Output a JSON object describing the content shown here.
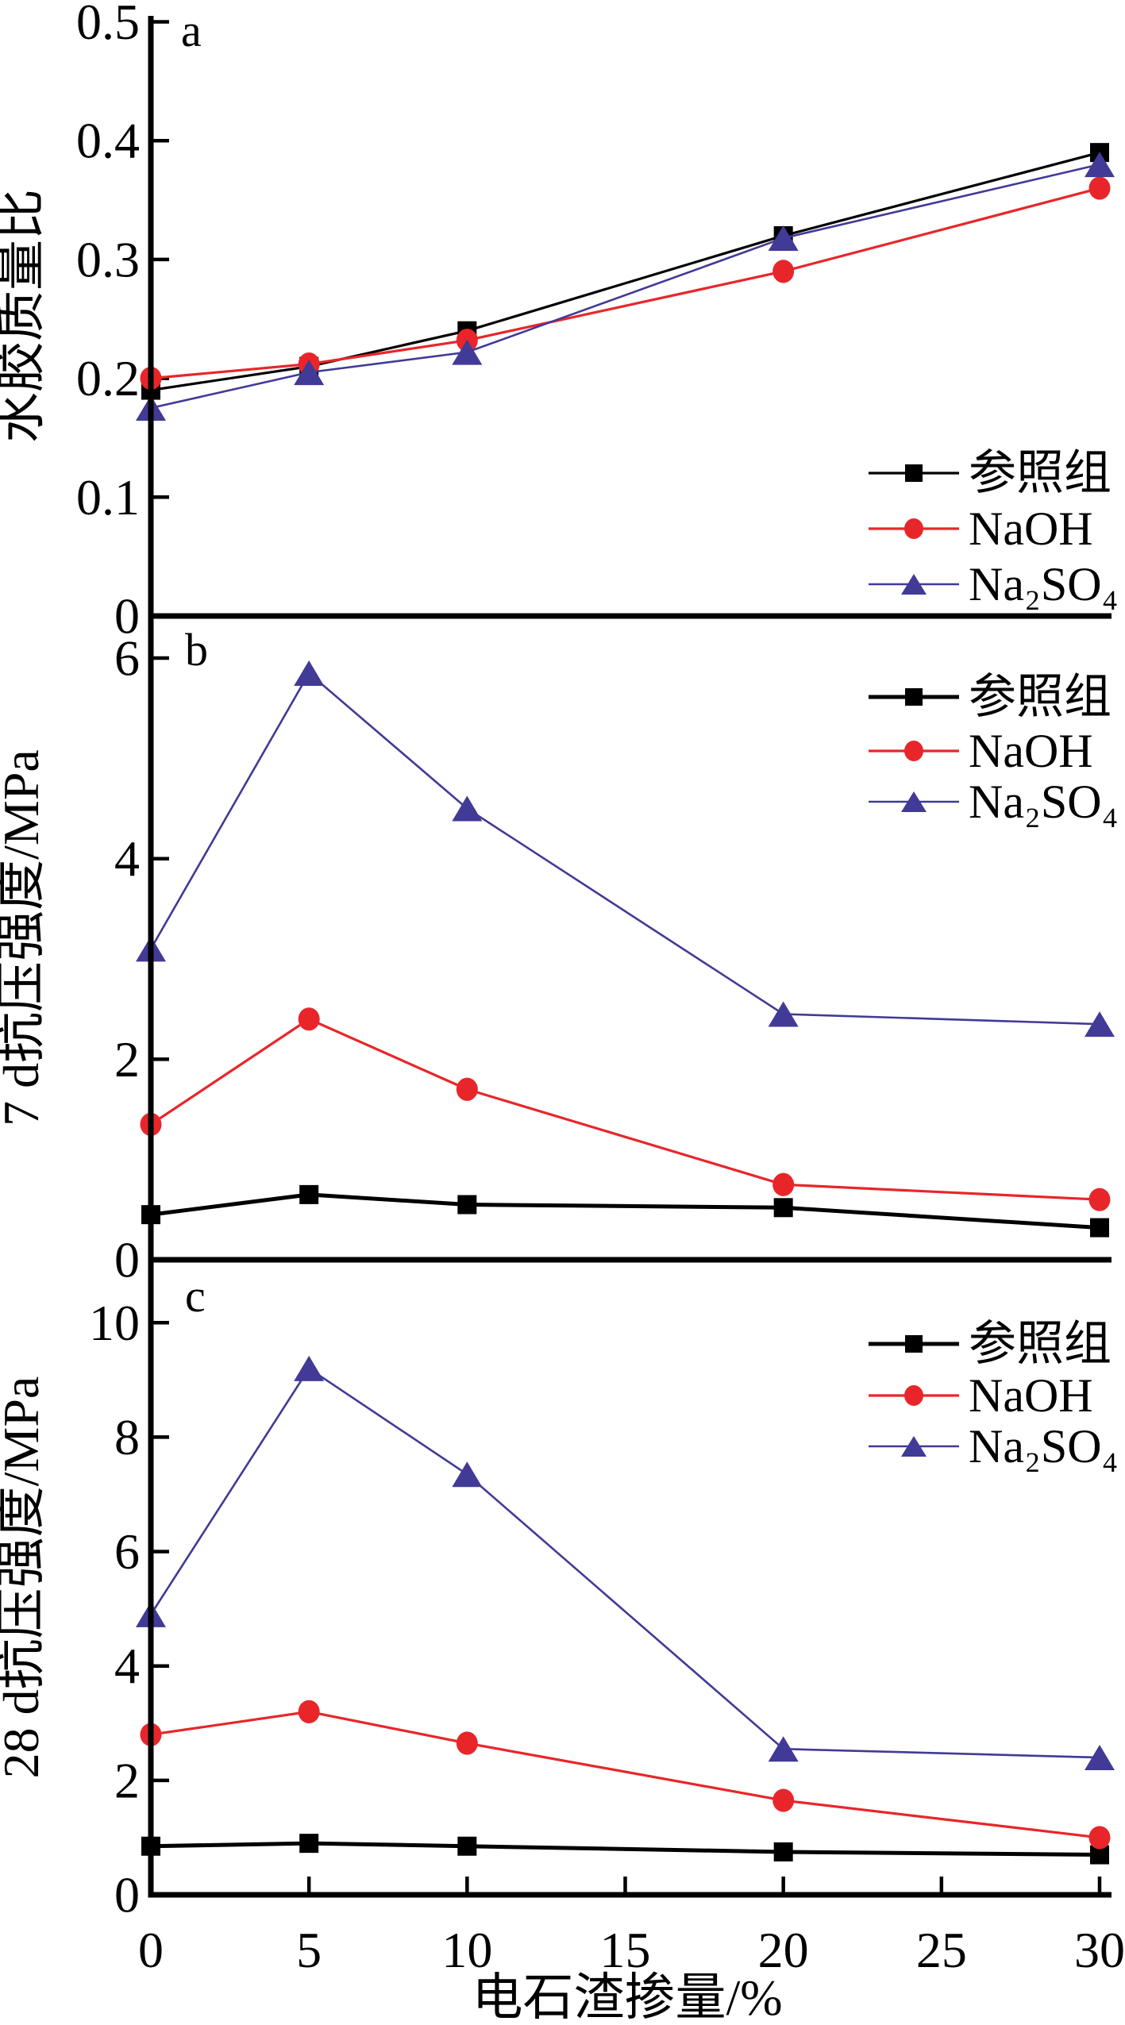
{
  "figure": {
    "xlabel": "电石渣掺量/%",
    "x_ticks": [
      0,
      5,
      10,
      15,
      20,
      25,
      30
    ],
    "x_range": [
      0,
      30
    ],
    "background": "#ffffff",
    "axis_color": "#000000",
    "legend_labels": [
      "参照组",
      "NaOH",
      "Na₂SO₄"
    ],
    "series_colors": {
      "reference": "#000000",
      "naoh": "#e8262a",
      "na2so4": "#413a96"
    }
  },
  "chart_data": [
    {
      "type": "line",
      "panel_label": "a",
      "ylabel": "水胶质量比",
      "x": [
        0,
        5,
        10,
        20,
        30
      ],
      "ylim": [
        0,
        0.505
      ],
      "yticks": [
        0,
        0.1,
        0.2,
        0.3,
        0.4,
        0.5
      ],
      "grid": false,
      "legend_position": "lower-right",
      "series": [
        {
          "id": "reference",
          "name": "参照组",
          "marker": "square",
          "color": "#000000",
          "line_width": 3.2,
          "values": [
            0.19,
            0.21,
            0.24,
            0.32,
            0.39
          ]
        },
        {
          "id": "naoh",
          "name": "NaOH",
          "marker": "circle",
          "color": "#e8262a",
          "line_width": 3.2,
          "values": [
            0.2,
            0.212,
            0.232,
            0.29,
            0.36
          ]
        },
        {
          "id": "na2so4",
          "name": "Na₂SO₄",
          "marker": "triangle",
          "color": "#413a96",
          "line_width": 2.6,
          "values": [
            0.175,
            0.205,
            0.222,
            0.318,
            0.38
          ]
        }
      ]
    },
    {
      "type": "line",
      "panel_label": "b",
      "ylabel": "7 d抗压强度/MPa",
      "x": [
        0,
        5,
        10,
        20,
        30
      ],
      "ylim": [
        0,
        6.42
      ],
      "yticks": [
        0,
        2,
        4,
        6
      ],
      "grid": false,
      "legend_position": "upper-right",
      "series": [
        {
          "id": "reference",
          "name": "参照组",
          "marker": "square",
          "color": "#000000",
          "line_width": 5,
          "values": [
            0.45,
            0.65,
            0.55,
            0.52,
            0.32
          ]
        },
        {
          "id": "naoh",
          "name": "NaOH",
          "marker": "circle",
          "color": "#e8262a",
          "line_width": 3.2,
          "values": [
            1.35,
            2.4,
            1.7,
            0.75,
            0.6
          ]
        },
        {
          "id": "na2so4",
          "name": "Na₂SO₄",
          "marker": "triangle",
          "color": "#413a96",
          "line_width": 2.6,
          "values": [
            3.1,
            5.85,
            4.5,
            2.45,
            2.35
          ]
        }
      ]
    },
    {
      "type": "line",
      "panel_label": "c",
      "ylabel": "28 d抗压强度/MPa",
      "x": [
        0,
        5,
        10,
        20,
        30
      ],
      "ylim": [
        0,
        11.1
      ],
      "yticks": [
        0,
        2,
        4,
        6,
        8,
        10
      ],
      "grid": false,
      "legend_position": "upper-right",
      "series": [
        {
          "id": "reference",
          "name": "参照组",
          "marker": "square",
          "color": "#000000",
          "line_width": 5,
          "values": [
            0.85,
            0.9,
            0.85,
            0.75,
            0.7
          ]
        },
        {
          "id": "naoh",
          "name": "NaOH",
          "marker": "circle",
          "color": "#e8262a",
          "line_width": 3.2,
          "values": [
            2.8,
            3.2,
            2.65,
            1.65,
            1.0
          ]
        },
        {
          "id": "na2so4",
          "name": "Na₂SO₄",
          "marker": "triangle",
          "color": "#413a96",
          "line_width": 2.6,
          "values": [
            4.9,
            9.2,
            7.35,
            2.55,
            2.4
          ]
        }
      ]
    }
  ]
}
